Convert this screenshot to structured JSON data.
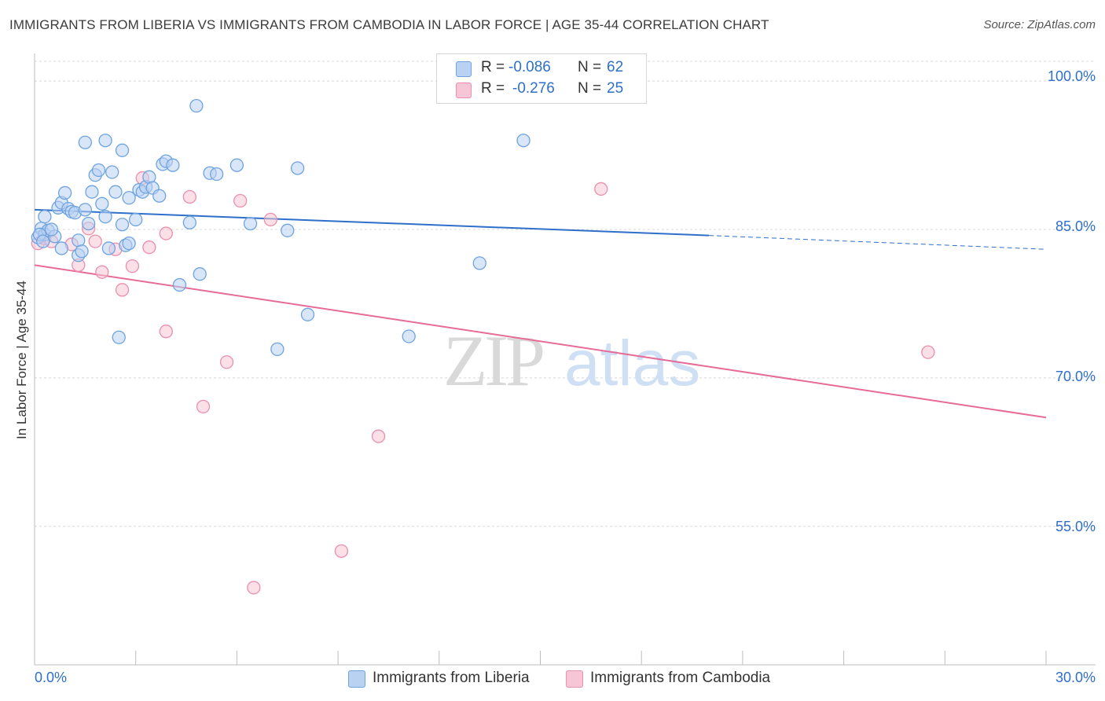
{
  "chart_data": {
    "type": "scatter",
    "title": "IMMIGRANTS FROM LIBERIA VS IMMIGRANTS FROM CAMBODIA IN LABOR FORCE | AGE 35-44 CORRELATION CHART",
    "source": "Source: ZipAtlas.com",
    "xlabel": "",
    "ylabel": "In Labor Force | Age 35-44",
    "xlim": [
      0,
      30
    ],
    "ylim": [
      41,
      102
    ],
    "x_tick_labels": [
      "0.0%",
      "30.0%"
    ],
    "y_ticks": [
      100,
      85,
      70,
      55
    ],
    "y_tick_labels": [
      "100.0%",
      "85.0%",
      "70.0%",
      "55.0%"
    ],
    "watermark": "ZIPatlas",
    "legend": {
      "rows": [
        {
          "r_label": "R =",
          "r_value": "-0.086",
          "n_label": "N =",
          "n_value": "62"
        },
        {
          "r_label": "R =",
          "r_value": "-0.276",
          "n_label": "N =",
          "n_value": "25"
        }
      ]
    },
    "series": [
      {
        "name": "Immigrants from Liberia",
        "color": "#6fa3e0",
        "fill": "#b9d2f2",
        "line_color": "#2e6fc9",
        "trend": {
          "x0": 0.0,
          "y0": 87.0,
          "x1": 20.0,
          "y1": 84.4,
          "dashed_to_x": 30.0,
          "dashed_to_y": 83.0
        },
        "points": [
          [
            0.1,
            84.2
          ],
          [
            0.2,
            85.1
          ],
          [
            0.3,
            84.5
          ],
          [
            0.3,
            86.3
          ],
          [
            0.4,
            84.9
          ],
          [
            0.6,
            84.3
          ],
          [
            0.7,
            87.2
          ],
          [
            0.8,
            87.7
          ],
          [
            0.8,
            83.1
          ],
          [
            0.9,
            88.7
          ],
          [
            1.0,
            87.1
          ],
          [
            1.1,
            86.8
          ],
          [
            1.2,
            86.7
          ],
          [
            1.3,
            82.4
          ],
          [
            1.3,
            83.9
          ],
          [
            1.4,
            82.8
          ],
          [
            1.5,
            87.0
          ],
          [
            1.5,
            93.8
          ],
          [
            1.6,
            85.6
          ],
          [
            1.7,
            88.8
          ],
          [
            1.8,
            90.5
          ],
          [
            1.9,
            91.0
          ],
          [
            2.0,
            87.6
          ],
          [
            2.1,
            86.3
          ],
          [
            2.1,
            94.0
          ],
          [
            2.2,
            83.1
          ],
          [
            2.3,
            90.8
          ],
          [
            2.4,
            88.8
          ],
          [
            2.5,
            74.1
          ],
          [
            2.6,
            93.0
          ],
          [
            2.6,
            85.5
          ],
          [
            2.7,
            83.4
          ],
          [
            2.8,
            88.2
          ],
          [
            2.8,
            83.6
          ],
          [
            3.0,
            86.0
          ],
          [
            3.1,
            89.0
          ],
          [
            3.2,
            88.8
          ],
          [
            3.3,
            89.3
          ],
          [
            3.4,
            90.3
          ],
          [
            3.5,
            89.2
          ],
          [
            3.7,
            88.4
          ],
          [
            3.8,
            91.6
          ],
          [
            3.9,
            91.9
          ],
          [
            4.1,
            91.5
          ],
          [
            4.3,
            79.4
          ],
          [
            4.6,
            85.7
          ],
          [
            4.8,
            97.5
          ],
          [
            4.9,
            80.5
          ],
          [
            5.2,
            90.7
          ],
          [
            5.4,
            90.6
          ],
          [
            6.0,
            91.5
          ],
          [
            6.4,
            85.6
          ],
          [
            7.2,
            72.9
          ],
          [
            7.5,
            84.9
          ],
          [
            7.8,
            91.2
          ],
          [
            8.1,
            76.4
          ],
          [
            11.1,
            74.2
          ],
          [
            13.2,
            81.6
          ],
          [
            14.5,
            94.0
          ],
          [
            0.15,
            84.5
          ],
          [
            0.5,
            85.0
          ],
          [
            0.25,
            83.8
          ]
        ]
      },
      {
        "name": "Immigrants from Cambodia",
        "color": "#ea8fae",
        "fill": "#f7c6d6",
        "line_color": "#e66b97",
        "trend": {
          "x0": 0.0,
          "y0": 81.4,
          "x1": 30.0,
          "y1": 66.0
        },
        "points": [
          [
            0.1,
            83.6
          ],
          [
            0.3,
            84.1
          ],
          [
            0.5,
            83.8
          ],
          [
            1.1,
            83.5
          ],
          [
            1.3,
            81.4
          ],
          [
            1.6,
            85.1
          ],
          [
            1.8,
            83.8
          ],
          [
            2.0,
            80.7
          ],
          [
            2.4,
            83.0
          ],
          [
            2.6,
            78.9
          ],
          [
            2.9,
            81.3
          ],
          [
            3.2,
            90.2
          ],
          [
            3.4,
            83.2
          ],
          [
            3.9,
            84.6
          ],
          [
            3.9,
            74.7
          ],
          [
            4.6,
            88.3
          ],
          [
            5.0,
            67.1
          ],
          [
            5.7,
            71.6
          ],
          [
            6.1,
            87.9
          ],
          [
            6.5,
            48.8
          ],
          [
            7.0,
            86.0
          ],
          [
            9.1,
            52.5
          ],
          [
            10.2,
            64.1
          ],
          [
            16.8,
            89.1
          ],
          [
            26.5,
            72.6
          ]
        ]
      }
    ]
  }
}
